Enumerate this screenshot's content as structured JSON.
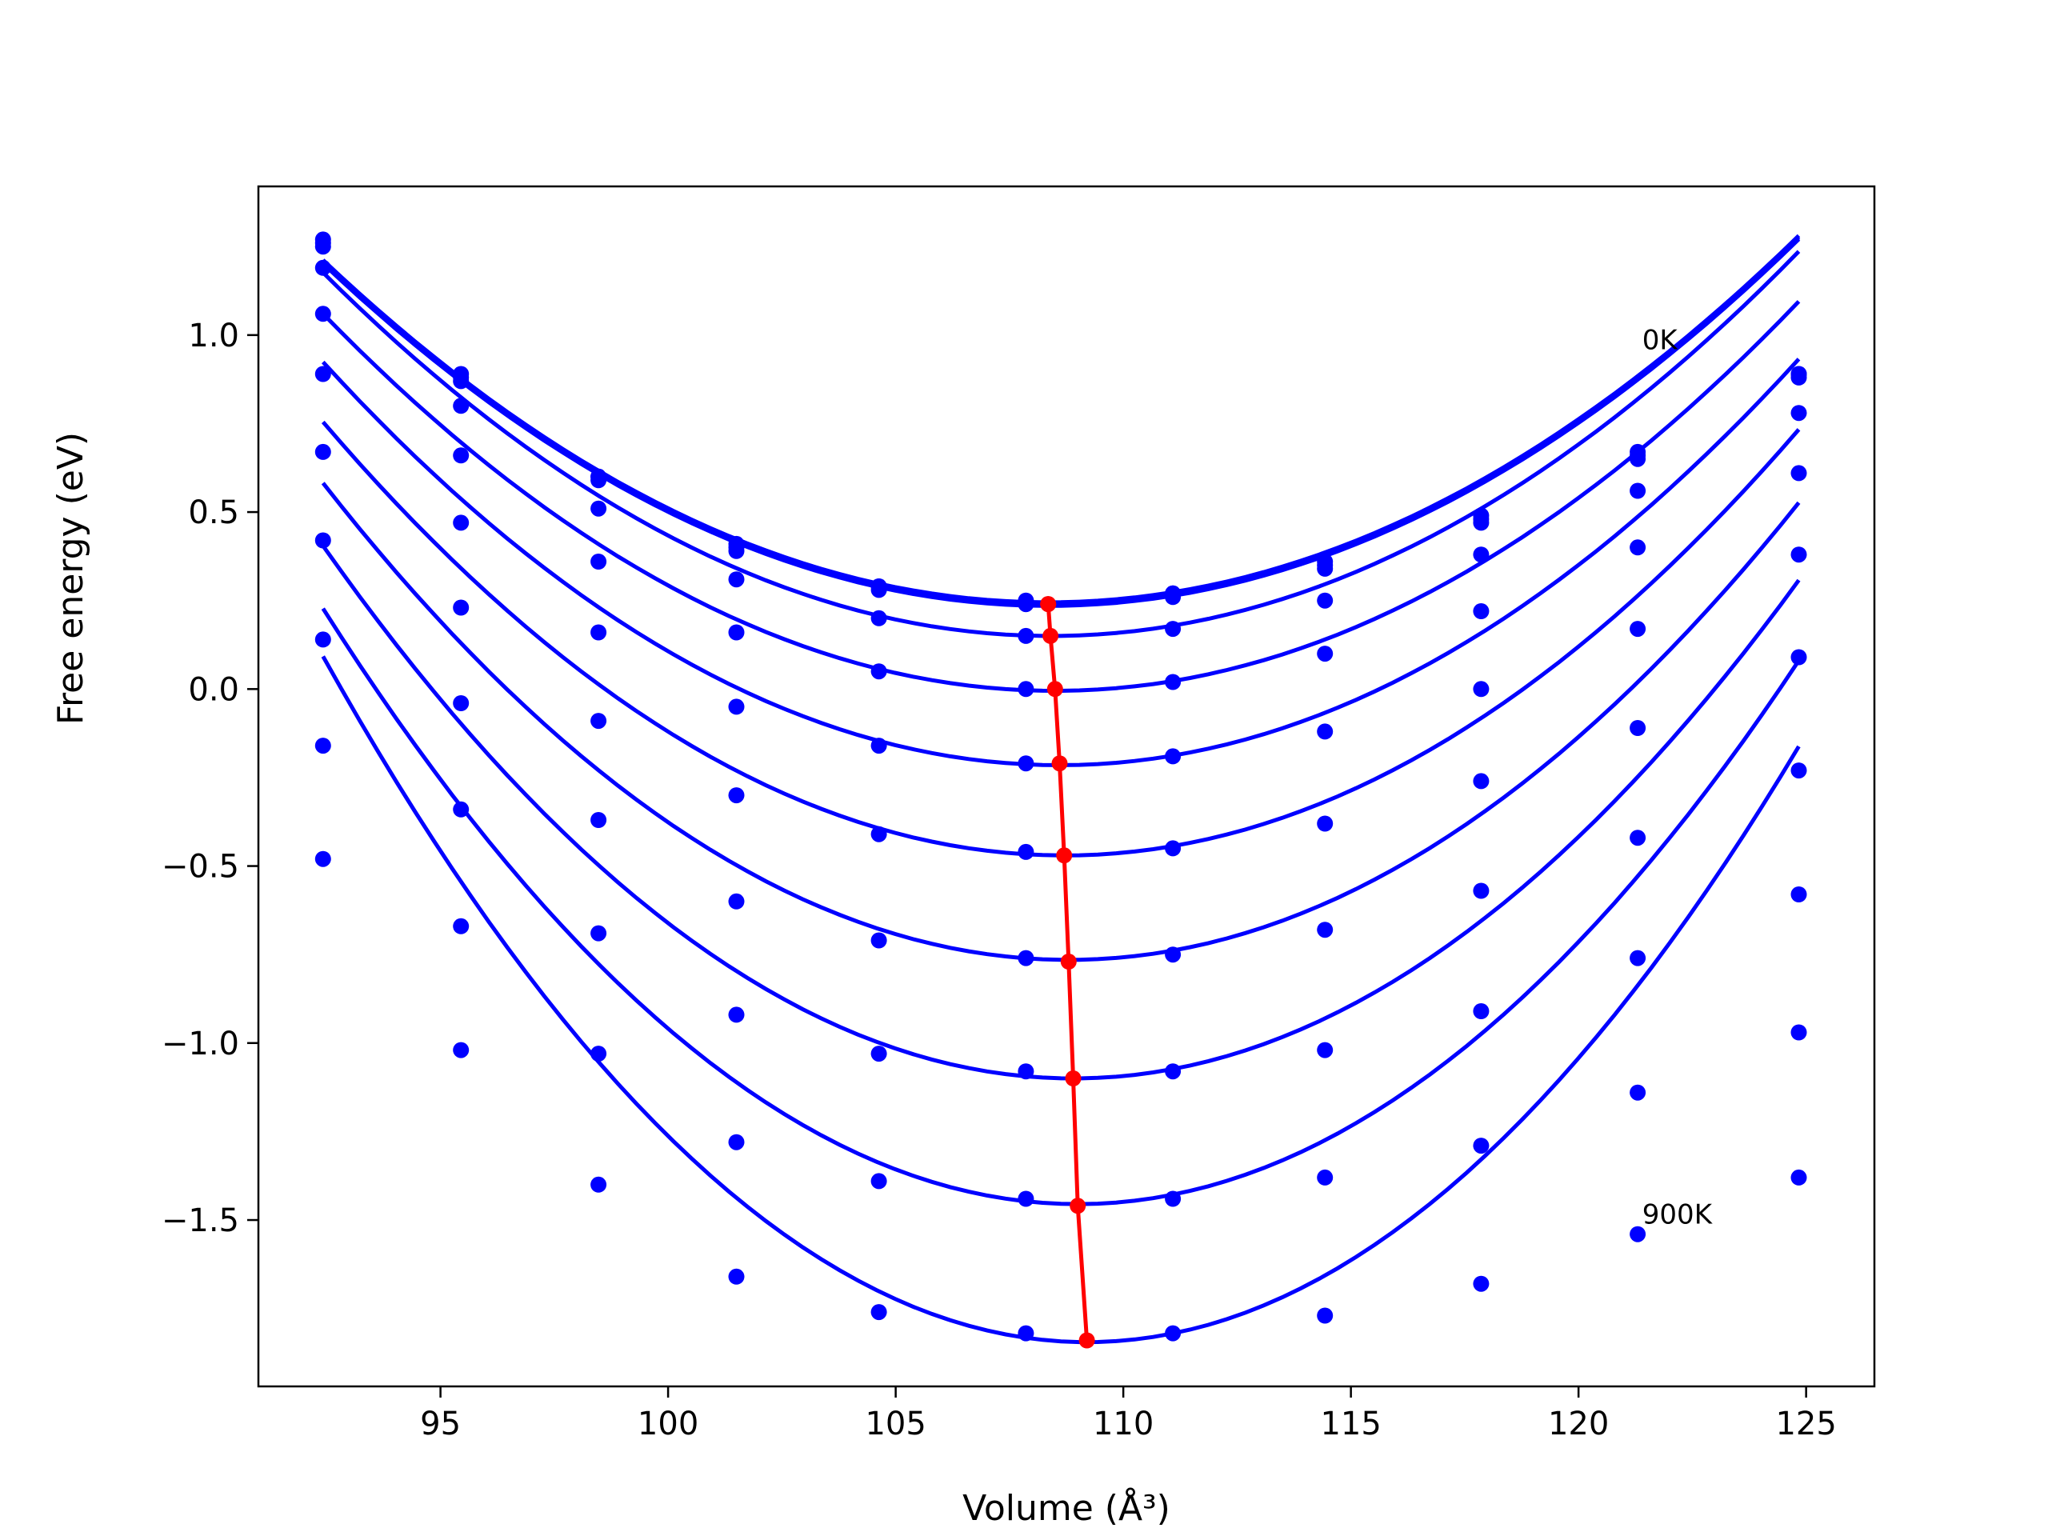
{
  "chart_data": {
    "type": "line",
    "title": "",
    "xlabel": "Volume (Å³)",
    "ylabel": "Free energy (eV)",
    "xlim": [
      91.0,
      126.5
    ],
    "ylim": [
      -1.97,
      1.42
    ],
    "xticks": [
      95,
      100,
      105,
      110,
      115,
      120,
      125
    ],
    "yticks": [
      -1.5,
      -1.0,
      -0.5,
      0.0,
      0.5,
      1.0
    ],
    "xtick_labels": [
      "95",
      "100",
      "105",
      "110",
      "115",
      "120",
      "125"
    ],
    "ytick_labels": [
      "−1.5",
      "−1.0",
      "−0.5",
      "0.0",
      "0.5",
      "1.0"
    ],
    "grid": false,
    "legend": false,
    "colors": {
      "curves": "#0000ff",
      "points": "#0000ff",
      "minimum_line": "#ff0000"
    },
    "annotations": [
      {
        "text": "0K",
        "x": 121.4,
        "y": 0.96
      },
      {
        "text": "900K",
        "x": 121.4,
        "y": -1.51
      }
    ],
    "x": [
      92.42,
      95.45,
      98.47,
      101.5,
      104.63,
      107.86,
      111.09,
      114.43,
      117.86,
      121.3,
      124.84
    ],
    "series": [
      {
        "values": [
          1.27,
          0.89,
          0.6,
          0.41,
          0.29,
          0.25,
          0.27,
          0.36,
          0.49,
          0.67,
          0.89
        ]
      },
      {
        "values": [
          1.26,
          0.88,
          0.6,
          0.4,
          0.29,
          0.24,
          0.27,
          0.35,
          0.48,
          0.66,
          0.89
        ]
      },
      {
        "values": [
          1.25,
          0.87,
          0.59,
          0.39,
          0.28,
          0.24,
          0.26,
          0.34,
          0.47,
          0.65,
          0.88
        ]
      },
      {
        "values": [
          1.19,
          0.8,
          0.51,
          0.31,
          0.2,
          0.15,
          0.17,
          0.25,
          0.38,
          0.56,
          0.78
        ]
      },
      {
        "values": [
          1.06,
          0.66,
          0.36,
          0.16,
          0.05,
          0.0,
          0.02,
          0.1,
          0.22,
          0.4,
          0.61
        ]
      },
      {
        "values": [
          0.89,
          0.47,
          0.16,
          -0.05,
          -0.16,
          -0.21,
          -0.19,
          -0.12,
          0.0,
          0.17,
          0.38
        ]
      },
      {
        "values": [
          0.67,
          0.23,
          -0.09,
          -0.3,
          -0.41,
          -0.46,
          -0.45,
          -0.38,
          -0.26,
          -0.11,
          0.09
        ]
      },
      {
        "values": [
          0.42,
          -0.04,
          -0.37,
          -0.6,
          -0.71,
          -0.76,
          -0.75,
          -0.68,
          -0.57,
          -0.42,
          -0.23
        ]
      },
      {
        "values": [
          0.14,
          -0.34,
          -0.69,
          -0.92,
          -1.03,
          -1.08,
          -1.08,
          -1.02,
          -0.91,
          -0.76,
          -0.58
        ]
      },
      {
        "values": [
          -0.16,
          -0.67,
          -1.03,
          -1.28,
          -1.39,
          -1.44,
          -1.44,
          -1.38,
          -1.29,
          -1.14,
          -0.97
        ]
      },
      {
        "values": [
          -0.48,
          -1.02,
          -1.4,
          -1.66,
          -1.76,
          -1.82,
          -1.82,
          -1.77,
          -1.68,
          -1.54,
          -1.38
        ]
      }
    ],
    "fitted_curves": [
      {
        "a": 0.00381,
        "v0": 108.35,
        "fmin": 0.245
      },
      {
        "a": 0.00381,
        "v0": 108.35,
        "fmin": 0.24
      },
      {
        "a": 0.00381,
        "v0": 108.35,
        "fmin": 0.235
      },
      {
        "a": 0.00402,
        "v0": 108.4,
        "fmin": 0.15
      },
      {
        "a": 0.00412,
        "v0": 108.5,
        "fmin": -0.005
      },
      {
        "a": 0.00435,
        "v0": 108.6,
        "fmin": -0.215
      },
      {
        "a": 0.00462,
        "v0": 108.7,
        "fmin": -0.47
      },
      {
        "a": 0.00502,
        "v0": 108.8,
        "fmin": -0.765
      },
      {
        "a": 0.00554,
        "v0": 108.9,
        "fmin": -1.1
      },
      {
        "a": 0.00612,
        "v0": 109.0,
        "fmin": -1.455
      },
      {
        "a": 0.00688,
        "v0": 109.2,
        "fmin": -1.845
      }
    ],
    "minimum_line": {
      "x": [
        108.35,
        108.35,
        108.4,
        108.5,
        108.6,
        108.7,
        108.8,
        108.9,
        109.0,
        109.2
      ],
      "y": [
        0.24,
        0.24,
        0.15,
        0.0,
        -0.21,
        -0.47,
        -0.77,
        -1.1,
        -1.46,
        -1.84
      ]
    }
  }
}
